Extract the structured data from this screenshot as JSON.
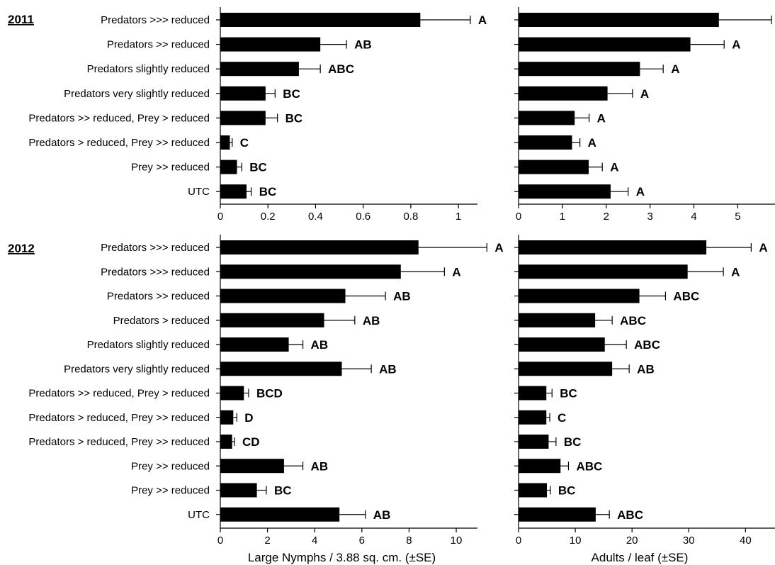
{
  "chart_data": [
    {
      "type": "bar",
      "orientation": "horizontal",
      "panel": "2011 - Large Nymphs",
      "year_label": "2011",
      "categories": [
        "Predators >>> reduced",
        "Predators >> reduced",
        "Predators slightly reduced",
        "Predators very slightly reduced",
        "Predators >> reduced, Prey > reduced",
        "Predators > reduced, Prey >> reduced",
        "Prey >> reduced",
        "UTC"
      ],
      "values": [
        0.84,
        0.42,
        0.33,
        0.19,
        0.19,
        0.04,
        0.07,
        0.11
      ],
      "errors": [
        0.21,
        0.11,
        0.09,
        0.04,
        0.05,
        0.01,
        0.02,
        0.02
      ],
      "letters": [
        "A",
        "AB",
        "ABC",
        "BC",
        "BC",
        "C",
        "BC",
        "BC"
      ],
      "xlim": [
        0,
        1.08
      ],
      "xticks": [
        "0",
        "0.2",
        "0.4",
        "0.6",
        "0.8",
        "1"
      ],
      "tick_values": [
        0,
        0.2,
        0.4,
        0.6,
        0.8,
        1
      ],
      "xlabel": ""
    },
    {
      "type": "bar",
      "orientation": "horizontal",
      "panel": "2011 - Adults",
      "categories": [
        "Predators >>> reduced",
        "Predators >> reduced",
        "Predators slightly reduced",
        "Predators very slightly reduced",
        "Predators >> reduced, Prey > reduced",
        "Predators > reduced, Prey >> reduced",
        "Prey >> reduced",
        "UTC"
      ],
      "values": [
        4.57,
        3.92,
        2.77,
        2.03,
        1.28,
        1.22,
        1.6,
        2.1
      ],
      "errors": [
        1.2,
        0.77,
        0.53,
        0.57,
        0.33,
        0.18,
        0.31,
        0.4
      ],
      "letters": [
        "A",
        "A",
        "A",
        "A",
        "A",
        "A",
        "A",
        "A"
      ],
      "xlim": [
        0,
        5.85
      ],
      "xticks": [
        "0",
        "1",
        "2",
        "3",
        "4",
        "5"
      ],
      "tick_values": [
        0,
        1,
        2,
        3,
        4,
        5
      ],
      "xlabel": ""
    },
    {
      "type": "bar",
      "orientation": "horizontal",
      "panel": "2012 - Large Nymphs",
      "year_label": "2012",
      "categories": [
        "Predators >>> reduced",
        "Predators >>> reduced",
        "Predators >> reduced",
        "Predators > reduced",
        "Predators slightly reduced",
        "Predators very slightly reduced",
        "Predators >> reduced, Prey > reduced",
        "Predators > reduced, Prey >> reduced",
        "Predators > reduced, Prey >> reduced",
        "Prey >> reduced",
        "Prey >> reduced",
        "UTC"
      ],
      "values": [
        8.4,
        7.65,
        5.3,
        4.4,
        2.9,
        5.15,
        1.0,
        0.55,
        0.5,
        2.7,
        1.55,
        5.05
      ],
      "errors": [
        2.9,
        1.85,
        1.7,
        1.3,
        0.6,
        1.25,
        0.2,
        0.15,
        0.1,
        0.8,
        0.4,
        1.1
      ],
      "letters": [
        "A",
        "A",
        "AB",
        "AB",
        "AB",
        "AB",
        "BCD",
        "D",
        "CD",
        "AB",
        "BC",
        "AB"
      ],
      "xlim": [
        0,
        10.9
      ],
      "xticks": [
        "0",
        "2",
        "4",
        "6",
        "8",
        "10"
      ],
      "tick_values": [
        0,
        2,
        4,
        6,
        8,
        10
      ],
      "xlabel": "Large Nymphs / 3.88 sq. cm. (±SE)"
    },
    {
      "type": "bar",
      "orientation": "horizontal",
      "panel": "2012 - Adults",
      "categories": [
        "Predators >>> reduced",
        "Predators >>> reduced",
        "Predators >> reduced",
        "Predators > reduced",
        "Predators slightly reduced",
        "Predators very slightly reduced",
        "Predators >> reduced, Prey > reduced",
        "Predators > reduced, Prey >> reduced",
        "Predators > reduced, Prey >> reduced",
        "Prey >> reduced",
        "Prey >> reduced",
        "UTC"
      ],
      "values": [
        33.1,
        29.8,
        21.3,
        13.5,
        15.2,
        16.5,
        4.9,
        4.9,
        5.3,
        7.4,
        5.0,
        13.6
      ],
      "errors": [
        7.9,
        6.3,
        4.6,
        3.0,
        3.8,
        3.0,
        1.0,
        0.6,
        1.3,
        1.4,
        0.6,
        2.4
      ],
      "letters": [
        "A",
        "A",
        "ABC",
        "ABC",
        "ABC",
        "AB",
        "BC",
        "C",
        "BC",
        "ABC",
        "BC",
        "ABC"
      ],
      "xlim": [
        0,
        45.2
      ],
      "xticks": [
        "0",
        "10",
        "20",
        "30",
        "40"
      ],
      "tick_values": [
        0,
        10,
        20,
        30,
        40
      ],
      "xlabel": "Adults / leaf (±SE)"
    }
  ]
}
